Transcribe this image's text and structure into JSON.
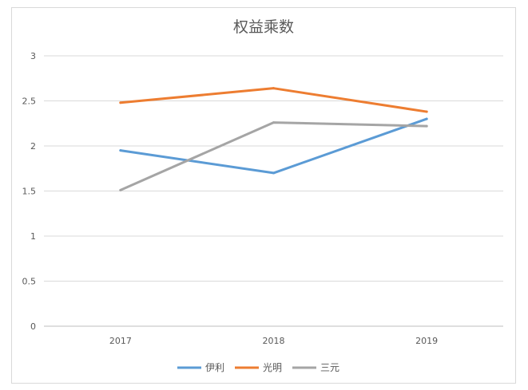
{
  "chart_data": {
    "type": "line",
    "title": "权益乘数",
    "categories": [
      "2017",
      "2018",
      "2019"
    ],
    "ylim": [
      0,
      3
    ],
    "yticks": [
      "0",
      "0.5",
      "1",
      "1.5",
      "2",
      "2.5",
      "3"
    ],
    "grid": true,
    "legend": "bottom",
    "series": [
      {
        "name": "伊利",
        "color": "#5b9bd5",
        "values": [
          1.95,
          1.7,
          2.3
        ]
      },
      {
        "name": "光明",
        "color": "#ed7d31",
        "values": [
          2.48,
          2.64,
          2.38
        ]
      },
      {
        "name": "三元",
        "color": "#a5a5a5",
        "values": [
          1.51,
          2.26,
          2.22
        ]
      }
    ]
  }
}
